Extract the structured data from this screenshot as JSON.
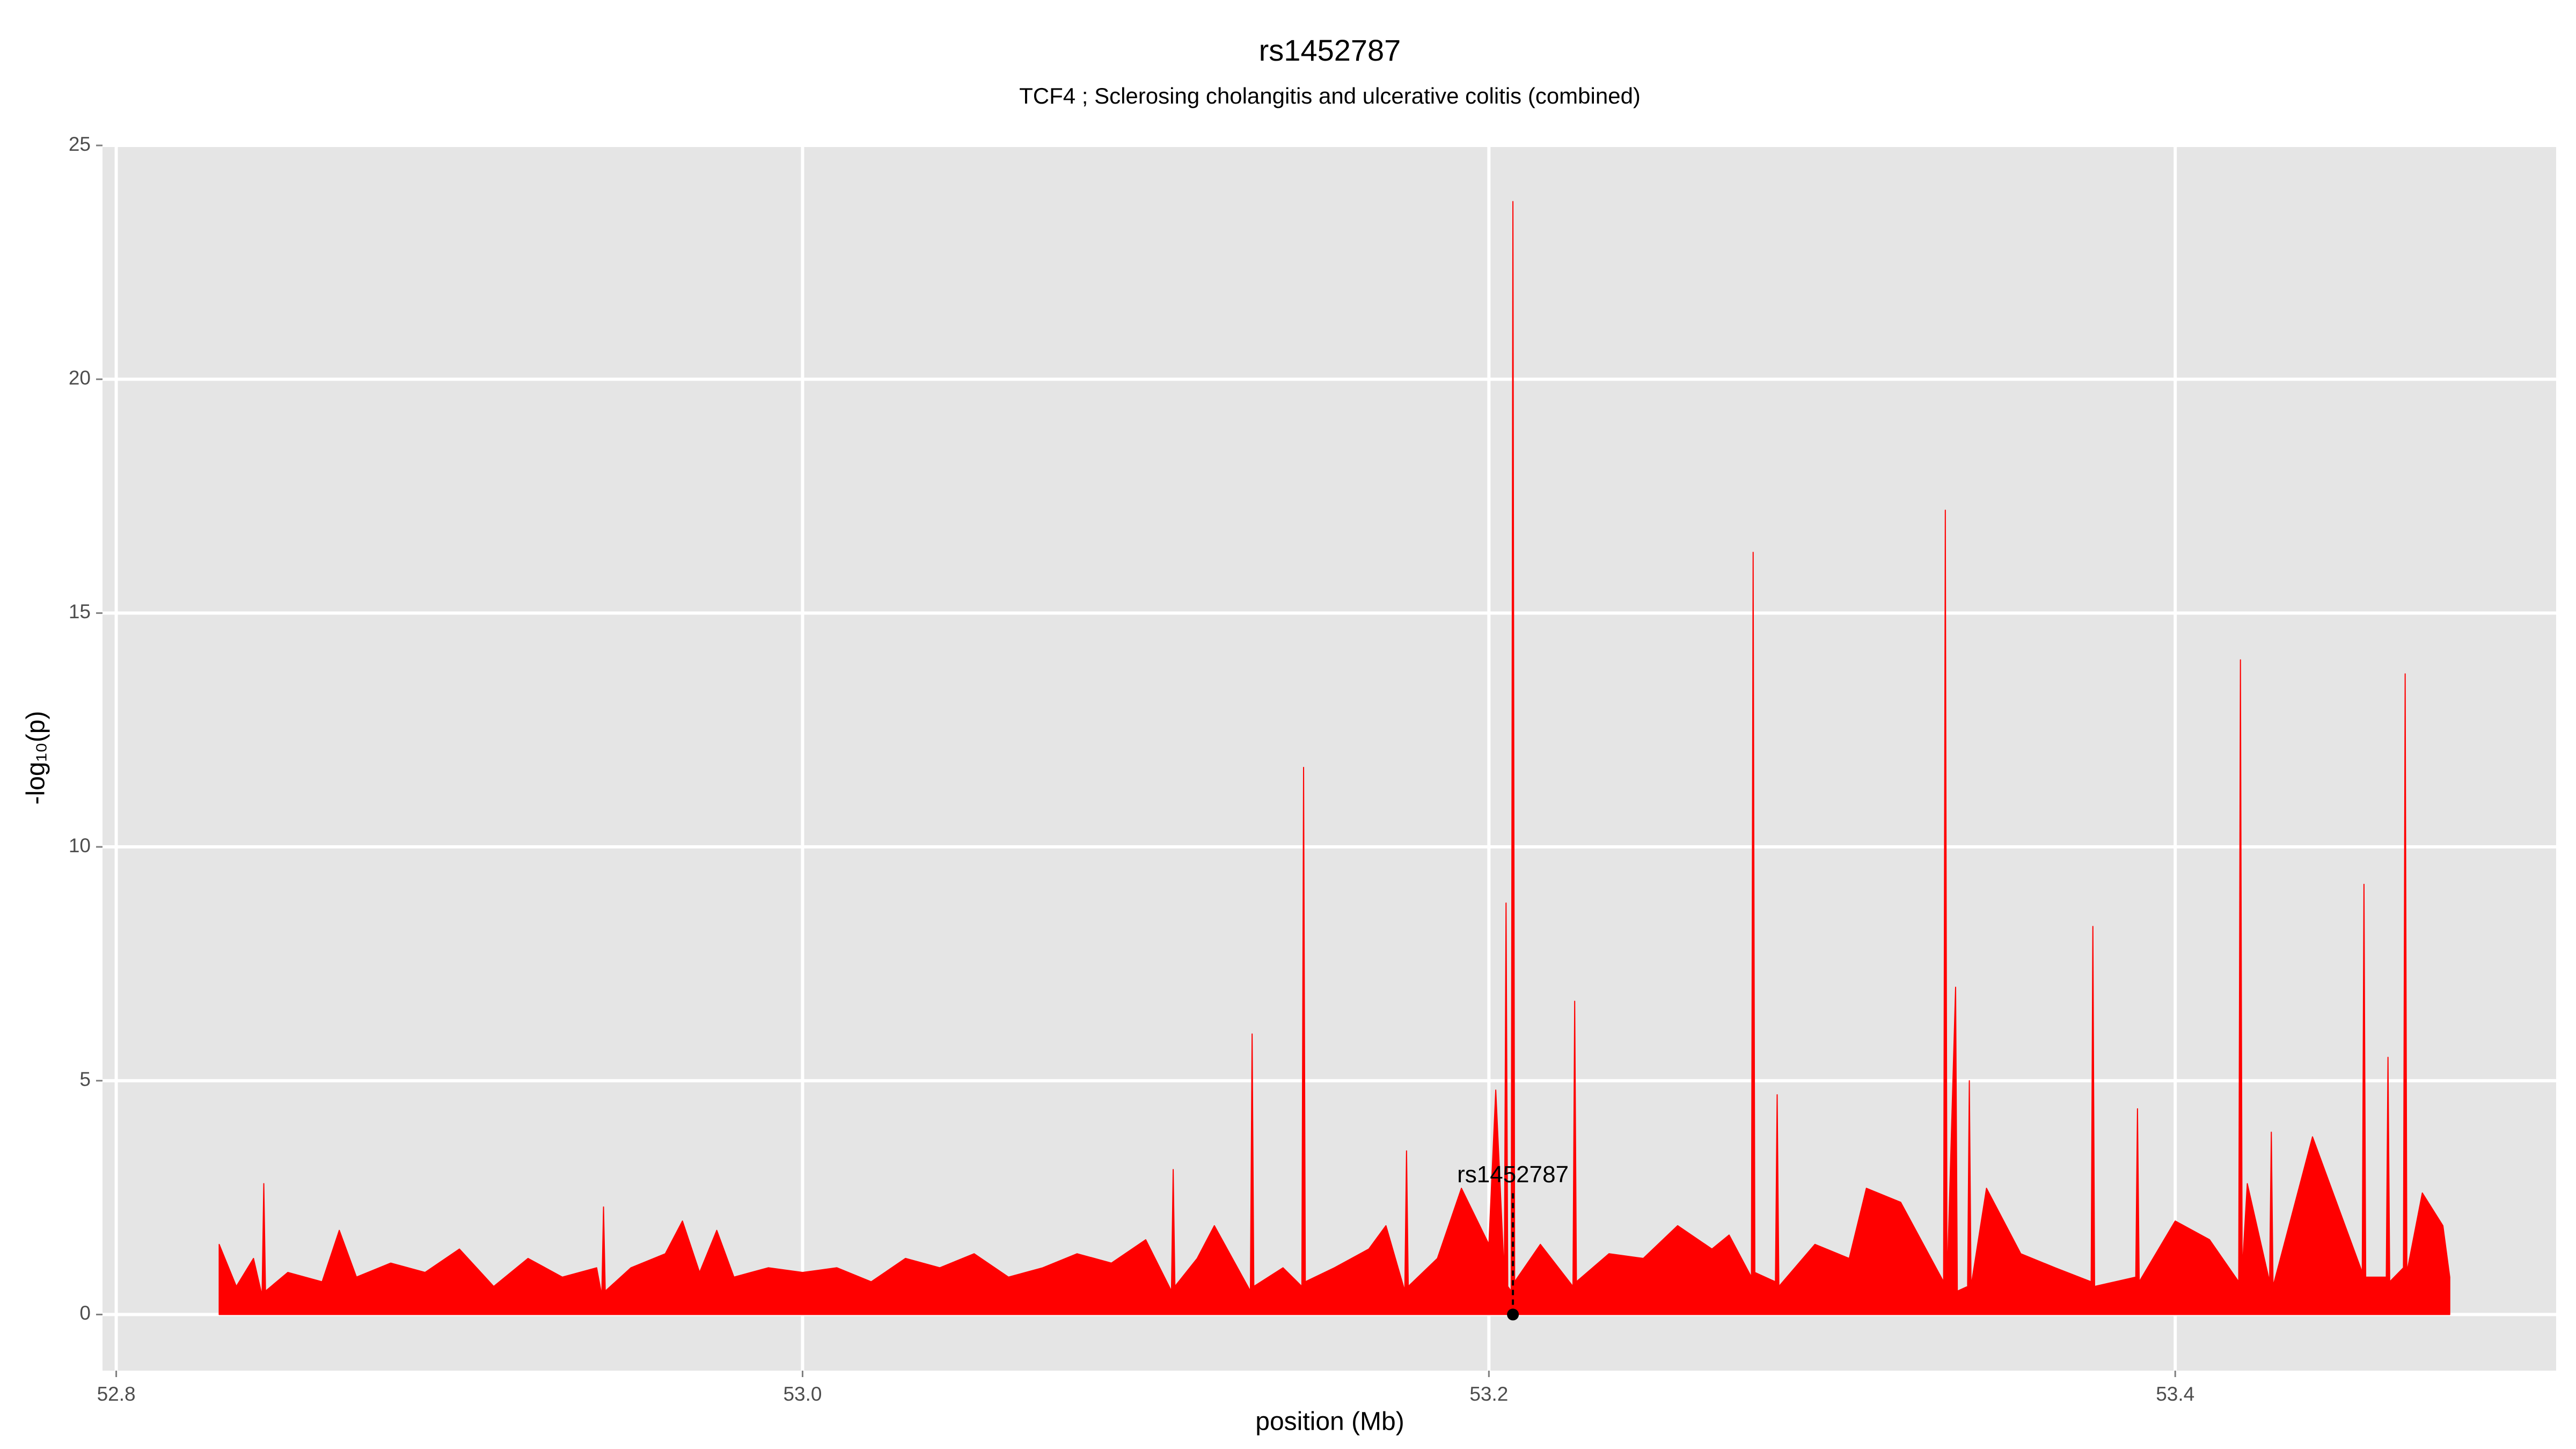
{
  "chart_data": {
    "type": "area",
    "title": "rs1452787",
    "subtitle": "TCF4 ; Sclerosing cholangitis and ulcerative colitis (combined)",
    "x_label": "position (Mb)",
    "y_label": "-log₁₀(p)",
    "color": "#ff0000",
    "grid": true,
    "xlim": [
      52.796,
      53.511
    ],
    "ylim": [
      -1.2,
      25
    ],
    "xticks": [
      {
        "value": 52.8,
        "label": "52.8"
      },
      {
        "value": 53.0,
        "label": "53.0"
      },
      {
        "value": 53.2,
        "label": "53.2"
      },
      {
        "value": 53.4,
        "label": "53.4"
      }
    ],
    "yticks": [
      0,
      5,
      10,
      15,
      20,
      25
    ],
    "x": [
      52.83,
      52.835,
      52.84,
      52.8425,
      52.843,
      52.8435,
      52.85,
      52.86,
      52.865,
      52.87,
      52.88,
      52.89,
      52.9,
      52.91,
      52.92,
      52.93,
      52.94,
      52.9415,
      52.942,
      52.9425,
      52.95,
      52.96,
      52.965,
      52.97,
      52.975,
      52.98,
      52.99,
      53.0,
      53.01,
      53.02,
      53.03,
      53.04,
      53.05,
      53.06,
      53.07,
      53.08,
      53.09,
      53.1,
      53.1075,
      53.108,
      53.1085,
      53.115,
      53.12,
      53.1305,
      53.131,
      53.1315,
      53.14,
      53.1455,
      53.146,
      53.1465,
      53.155,
      53.165,
      53.17,
      53.1755,
      53.176,
      53.1765,
      53.185,
      53.192,
      53.2,
      53.202,
      53.2045,
      53.205,
      53.2055,
      53.2065,
      53.207,
      53.2075,
      53.215,
      53.2245,
      53.225,
      53.2255,
      53.235,
      53.245,
      53.255,
      53.265,
      53.27,
      53.2765,
      53.277,
      53.2775,
      53.2835,
      53.284,
      53.2845,
      53.295,
      53.305,
      53.31,
      53.32,
      53.3325,
      53.333,
      53.3335,
      53.336,
      53.3365,
      53.3395,
      53.34,
      53.3405,
      53.345,
      53.355,
      53.365,
      53.3755,
      53.376,
      53.3765,
      53.3885,
      53.389,
      53.3895,
      53.4,
      53.41,
      53.4185,
      53.419,
      53.4195,
      53.421,
      53.4275,
      53.428,
      53.4285,
      53.44,
      53.4545,
      53.455,
      53.4555,
      53.4615,
      53.462,
      53.4625,
      53.4665,
      53.467,
      53.4675,
      53.472,
      53.478,
      53.48
    ],
    "values": [
      1.5,
      0.6,
      1.2,
      0.4,
      2.8,
      0.5,
      0.9,
      0.7,
      1.8,
      0.8,
      1.1,
      0.9,
      1.4,
      0.6,
      1.2,
      0.8,
      1.0,
      0.4,
      2.3,
      0.5,
      1.0,
      1.3,
      2.0,
      0.9,
      1.8,
      0.8,
      1.0,
      0.9,
      1.0,
      0.7,
      1.2,
      1.0,
      1.3,
      0.8,
      1.0,
      1.3,
      1.1,
      1.6,
      0.5,
      3.1,
      0.6,
      1.2,
      1.9,
      0.5,
      6.0,
      0.6,
      1.0,
      0.6,
      11.7,
      0.7,
      1.0,
      1.4,
      1.9,
      0.5,
      3.5,
      0.6,
      1.2,
      2.7,
      1.5,
      4.8,
      0.8,
      8.8,
      0.6,
      0.5,
      23.8,
      0.7,
      1.5,
      0.6,
      6.7,
      0.7,
      1.3,
      1.2,
      1.9,
      1.4,
      1.7,
      0.8,
      16.3,
      0.9,
      0.7,
      4.7,
      0.6,
      1.5,
      1.2,
      2.7,
      2.4,
      0.7,
      17.2,
      0.6,
      7.0,
      0.5,
      0.6,
      5.0,
      0.6,
      2.7,
      1.3,
      1.0,
      0.7,
      8.3,
      0.6,
      0.8,
      4.4,
      0.7,
      2.0,
      1.6,
      0.7,
      14.0,
      0.9,
      2.8,
      0.7,
      3.9,
      0.6,
      3.8,
      0.9,
      9.2,
      0.8,
      0.8,
      5.5,
      0.7,
      1.0,
      13.7,
      0.9,
      2.6,
      1.9,
      0.8
    ],
    "annotation": {
      "label": "rs1452787",
      "x": 53.207,
      "y": 0
    }
  }
}
